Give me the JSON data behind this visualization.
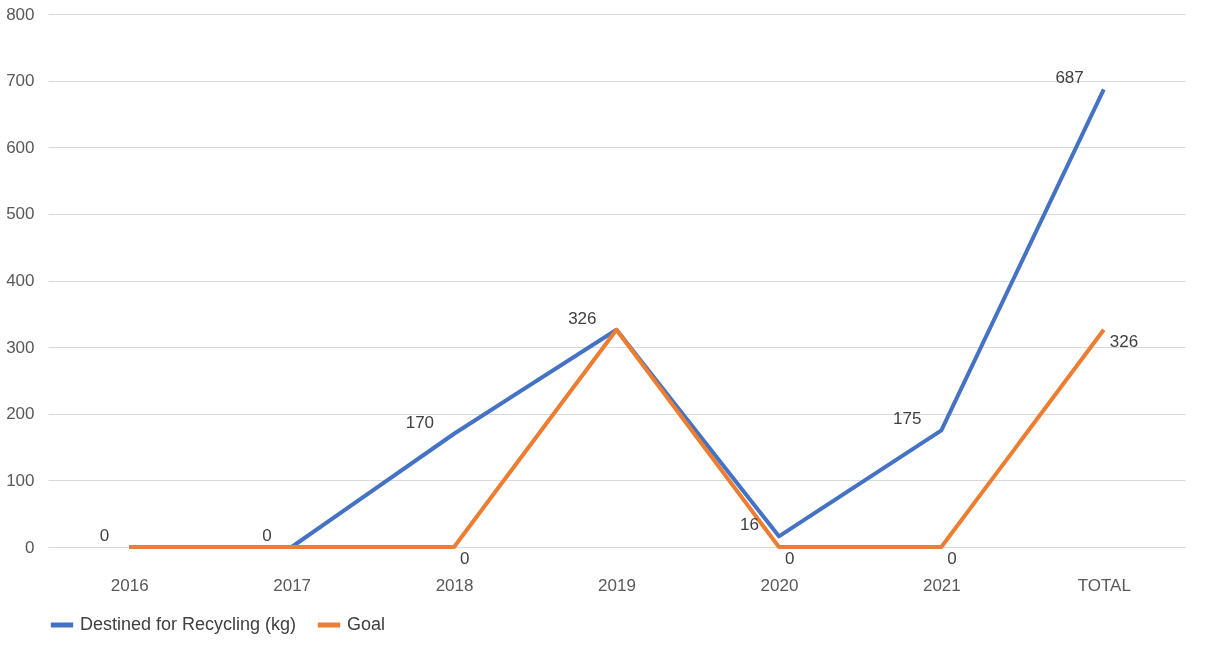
{
  "chart_data": {
    "type": "line",
    "categories": [
      "2016",
      "2017",
      "2018",
      "2019",
      "2020",
      "2021",
      "TOTAL"
    ],
    "series": [
      {
        "name": "Destined for Recycling (kg)",
        "color": "#4472c4",
        "values": [
          0,
          0,
          170,
          326,
          16,
          175,
          687
        ],
        "value_labels": [
          "0",
          "0",
          "170",
          "326",
          "16",
          "175",
          "687"
        ]
      },
      {
        "name": "Goal",
        "color": "#ed7d31",
        "values": [
          0,
          0,
          0,
          326,
          0,
          0,
          326
        ],
        "value_labels": [
          null,
          null,
          "0",
          null,
          "0",
          "0",
          "326"
        ]
      }
    ],
    "ylim": [
      0,
      800
    ],
    "yticks": [
      0,
      100,
      200,
      300,
      400,
      500,
      600,
      700,
      800
    ],
    "grid": "y",
    "legend": "bottom"
  }
}
